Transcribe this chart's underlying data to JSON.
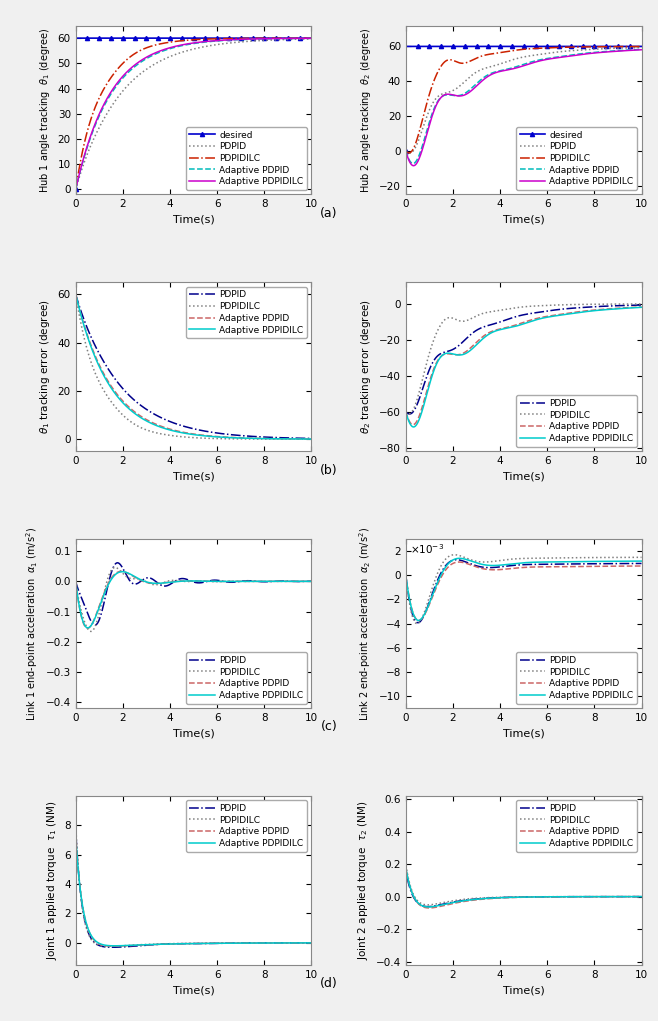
{
  "t_max": 10,
  "figure_size": [
    6.58,
    10.21
  ],
  "dpi": 100,
  "subplot_labels": [
    "(a)",
    "(b)",
    "(c)",
    "(d)"
  ],
  "colors": {
    "desired": "#0000CD",
    "PDPID": "#808080",
    "PDPIDILC": "#CC2200",
    "Adaptive_PDPID": "#00BBBB",
    "Adaptive_PDPIDILC": "#CC00CC"
  },
  "err_colors": {
    "PDPID": "#00008B",
    "PDPIDILC": "#808080",
    "Adaptive_PDPID": "#CC6666",
    "Adaptive_PDPIDILC": "#00CCCC"
  },
  "time_label": "Time(s)",
  "bg_color": "#F0F0F0",
  "plot_bg": "#FFFFFF"
}
